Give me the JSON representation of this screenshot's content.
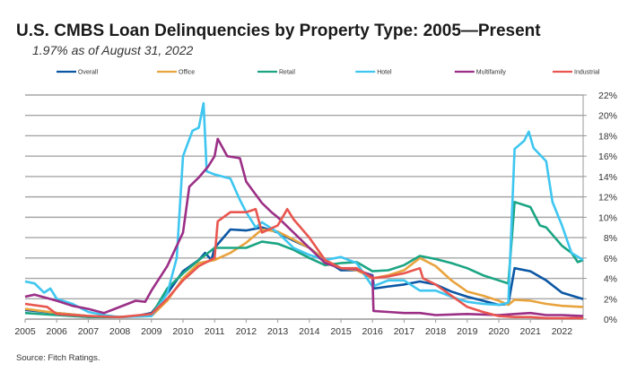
{
  "chart_data": {
    "type": "line",
    "title": "U.S. CMBS Loan Delinquencies by Property Type: 2005—Present",
    "subtitle": "1.97% as of August 31, 2022",
    "source": "Source: Fitch Ratings.",
    "xlabel": "",
    "ylabel": "",
    "xlim": [
      2005,
      2022.67
    ],
    "ylim": [
      0,
      22
    ],
    "x_ticks": [
      "2005",
      "2006",
      "2007",
      "2008",
      "2009",
      "2010",
      "2011",
      "2012",
      "2013",
      "2014",
      "2015",
      "2016",
      "2017",
      "2018",
      "2019",
      "2020",
      "2021",
      "2022"
    ],
    "y_ticks": [
      "0%",
      "2%",
      "4%",
      "6%",
      "8%",
      "10%",
      "12%",
      "14%",
      "16%",
      "18%",
      "20%",
      "22%"
    ],
    "y_axis_side": "right",
    "grid": "horizontal",
    "legend_position": "top",
    "series": [
      {
        "name": "Overall",
        "color": "#0b57a4",
        "points": [
          [
            2005,
            0.9
          ],
          [
            2006,
            0.6
          ],
          [
            2007,
            0.3
          ],
          [
            2008,
            0.2
          ],
          [
            2008.5,
            0.3
          ],
          [
            2009,
            0.6
          ],
          [
            2009.5,
            2.5
          ],
          [
            2010,
            4.7
          ],
          [
            2010.5,
            5.8
          ],
          [
            2010.7,
            6.5
          ],
          [
            2010.9,
            5.8
          ],
          [
            2011,
            7.0
          ],
          [
            2011.5,
            8.8
          ],
          [
            2012,
            8.7
          ],
          [
            2012.5,
            9.0
          ],
          [
            2013,
            8.5
          ],
          [
            2013.5,
            7.7
          ],
          [
            2014,
            7.0
          ],
          [
            2014.5,
            5.8
          ],
          [
            2015,
            4.8
          ],
          [
            2015.5,
            4.8
          ],
          [
            2016,
            4.3
          ],
          [
            2016.05,
            3.0
          ],
          [
            2016.5,
            3.2
          ],
          [
            2017,
            3.4
          ],
          [
            2017.5,
            3.7
          ],
          [
            2018,
            3.4
          ],
          [
            2018.5,
            2.7
          ],
          [
            2019,
            2.2
          ],
          [
            2019.5,
            1.8
          ],
          [
            2020,
            1.4
          ],
          [
            2020.3,
            1.5
          ],
          [
            2020.5,
            5.0
          ],
          [
            2021,
            4.7
          ],
          [
            2021.5,
            3.8
          ],
          [
            2022,
            2.6
          ],
          [
            2022.67,
            1.97
          ]
        ]
      },
      {
        "name": "Office",
        "color": "#e8a33d",
        "points": [
          [
            2005,
            1.0
          ],
          [
            2006,
            0.6
          ],
          [
            2007,
            0.3
          ],
          [
            2008,
            0.2
          ],
          [
            2009,
            0.3
          ],
          [
            2009.5,
            1.8
          ],
          [
            2010,
            4.0
          ],
          [
            2010.5,
            5.5
          ],
          [
            2011,
            5.8
          ],
          [
            2011.5,
            6.5
          ],
          [
            2012,
            7.5
          ],
          [
            2012.5,
            8.8
          ],
          [
            2013,
            8.6
          ],
          [
            2013.5,
            7.8
          ],
          [
            2014,
            7.0
          ],
          [
            2014.5,
            5.8
          ],
          [
            2015,
            5.0
          ],
          [
            2015.5,
            4.8
          ],
          [
            2016,
            4.0
          ],
          [
            2016.5,
            4.3
          ],
          [
            2017,
            4.8
          ],
          [
            2017.5,
            6.0
          ],
          [
            2018,
            5.2
          ],
          [
            2018.5,
            3.8
          ],
          [
            2019,
            2.7
          ],
          [
            2019.5,
            2.3
          ],
          [
            2020,
            1.8
          ],
          [
            2020.3,
            1.4
          ],
          [
            2020.5,
            1.9
          ],
          [
            2021,
            1.8
          ],
          [
            2021.5,
            1.5
          ],
          [
            2022,
            1.3
          ],
          [
            2022.67,
            1.2
          ]
        ]
      },
      {
        "name": "Retail",
        "color": "#1ba583",
        "points": [
          [
            2005,
            0.6
          ],
          [
            2006,
            0.4
          ],
          [
            2007,
            0.2
          ],
          [
            2008,
            0.2
          ],
          [
            2009,
            0.4
          ],
          [
            2009.5,
            3.0
          ],
          [
            2010,
            4.5
          ],
          [
            2010.5,
            5.8
          ],
          [
            2011,
            7.0
          ],
          [
            2011.5,
            7.0
          ],
          [
            2012,
            7.0
          ],
          [
            2012.5,
            7.6
          ],
          [
            2013,
            7.4
          ],
          [
            2013.5,
            6.8
          ],
          [
            2014,
            6.0
          ],
          [
            2014.5,
            5.3
          ],
          [
            2015,
            5.5
          ],
          [
            2015.5,
            5.6
          ],
          [
            2016,
            4.7
          ],
          [
            2016.5,
            4.8
          ],
          [
            2017,
            5.3
          ],
          [
            2017.5,
            6.2
          ],
          [
            2018,
            5.9
          ],
          [
            2018.5,
            5.5
          ],
          [
            2019,
            5.0
          ],
          [
            2019.5,
            4.3
          ],
          [
            2020,
            3.8
          ],
          [
            2020.3,
            3.5
          ],
          [
            2020.5,
            11.5
          ],
          [
            2021,
            11.0
          ],
          [
            2021.3,
            9.2
          ],
          [
            2021.5,
            9.0
          ],
          [
            2022,
            7.2
          ],
          [
            2022.3,
            6.5
          ],
          [
            2022.5,
            5.6
          ],
          [
            2022.67,
            5.8
          ]
        ]
      },
      {
        "name": "Hotel",
        "color": "#3ec6f0",
        "points": [
          [
            2005,
            3.7
          ],
          [
            2005.3,
            3.5
          ],
          [
            2005.6,
            2.6
          ],
          [
            2005.8,
            3.0
          ],
          [
            2006,
            2.0
          ],
          [
            2006.5,
            1.5
          ],
          [
            2007,
            0.7
          ],
          [
            2007.5,
            0.4
          ],
          [
            2008,
            0.2
          ],
          [
            2009,
            0.3
          ],
          [
            2009.5,
            2.5
          ],
          [
            2009.8,
            6.0
          ],
          [
            2010,
            16.0
          ],
          [
            2010.3,
            18.5
          ],
          [
            2010.5,
            18.8
          ],
          [
            2010.65,
            21.2
          ],
          [
            2010.75,
            14.5
          ],
          [
            2011,
            14.2
          ],
          [
            2011.5,
            13.8
          ],
          [
            2011.8,
            11.7
          ],
          [
            2012,
            10.5
          ],
          [
            2012.3,
            9.0
          ],
          [
            2012.5,
            9.5
          ],
          [
            2013,
            8.5
          ],
          [
            2013.5,
            7.0
          ],
          [
            2014,
            6.3
          ],
          [
            2014.5,
            5.8
          ],
          [
            2015,
            6.1
          ],
          [
            2015.5,
            5.5
          ],
          [
            2016,
            3.2
          ],
          [
            2016.5,
            3.8
          ],
          [
            2017,
            3.8
          ],
          [
            2017.5,
            2.8
          ],
          [
            2018,
            2.8
          ],
          [
            2018.5,
            2.2
          ],
          [
            2019,
            1.7
          ],
          [
            2019.5,
            1.5
          ],
          [
            2020,
            1.4
          ],
          [
            2020.3,
            1.6
          ],
          [
            2020.5,
            16.7
          ],
          [
            2020.8,
            17.5
          ],
          [
            2020.95,
            18.4
          ],
          [
            2021.1,
            16.8
          ],
          [
            2021.5,
            15.5
          ],
          [
            2021.7,
            11.5
          ],
          [
            2022,
            9.2
          ],
          [
            2022.3,
            6.5
          ],
          [
            2022.67,
            5.8
          ]
        ]
      },
      {
        "name": "Multifamily",
        "color": "#9b2f86",
        "points": [
          [
            2005,
            2.2
          ],
          [
            2005.3,
            2.4
          ],
          [
            2006,
            1.8
          ],
          [
            2006.5,
            1.3
          ],
          [
            2007,
            1.0
          ],
          [
            2007.5,
            0.6
          ],
          [
            2008,
            1.2
          ],
          [
            2008.5,
            1.8
          ],
          [
            2008.8,
            1.7
          ],
          [
            2009,
            2.8
          ],
          [
            2009.5,
            5.2
          ],
          [
            2010,
            8.5
          ],
          [
            2010.2,
            13.0
          ],
          [
            2010.5,
            13.9
          ],
          [
            2010.8,
            15.0
          ],
          [
            2011,
            16.0
          ],
          [
            2011.1,
            17.7
          ],
          [
            2011.4,
            16.0
          ],
          [
            2011.8,
            15.8
          ],
          [
            2012,
            13.5
          ],
          [
            2012.5,
            11.4
          ],
          [
            2012.8,
            10.5
          ],
          [
            2013,
            10.0
          ],
          [
            2013.5,
            8.5
          ],
          [
            2014,
            7.0
          ],
          [
            2014.5,
            5.5
          ],
          [
            2015,
            5.0
          ],
          [
            2015.5,
            4.9
          ],
          [
            2016,
            4.2
          ],
          [
            2016.03,
            0.8
          ],
          [
            2016.5,
            0.7
          ],
          [
            2017,
            0.6
          ],
          [
            2017.5,
            0.6
          ],
          [
            2018,
            0.4
          ],
          [
            2019,
            0.5
          ],
          [
            2020,
            0.4
          ],
          [
            2020.5,
            0.5
          ],
          [
            2021,
            0.6
          ],
          [
            2021.5,
            0.4
          ],
          [
            2022,
            0.4
          ],
          [
            2022.67,
            0.3
          ]
        ]
      },
      {
        "name": "Industrial",
        "color": "#e8564f",
        "points": [
          [
            2005,
            1.5
          ],
          [
            2005.7,
            1.2
          ],
          [
            2006,
            0.5
          ],
          [
            2007,
            0.3
          ],
          [
            2008,
            0.2
          ],
          [
            2009,
            0.5
          ],
          [
            2009.5,
            2.0
          ],
          [
            2010,
            3.8
          ],
          [
            2010.5,
            5.2
          ],
          [
            2011,
            6.0
          ],
          [
            2011.1,
            9.6
          ],
          [
            2011.5,
            10.5
          ],
          [
            2012,
            10.5
          ],
          [
            2012.3,
            10.8
          ],
          [
            2012.5,
            8.5
          ],
          [
            2013,
            9.2
          ],
          [
            2013.3,
            10.8
          ],
          [
            2013.5,
            9.8
          ],
          [
            2014,
            8.0
          ],
          [
            2014.5,
            5.8
          ],
          [
            2015,
            5.0
          ],
          [
            2015.5,
            5.0
          ],
          [
            2016,
            4.0
          ],
          [
            2016.5,
            4.2
          ],
          [
            2017,
            4.5
          ],
          [
            2017.5,
            5.0
          ],
          [
            2017.6,
            4.0
          ],
          [
            2018,
            3.4
          ],
          [
            2018.5,
            2.3
          ],
          [
            2019,
            1.2
          ],
          [
            2019.5,
            0.7
          ],
          [
            2020,
            0.3
          ],
          [
            2020.5,
            0.2
          ],
          [
            2021,
            0.2
          ],
          [
            2021.5,
            0.1
          ],
          [
            2022,
            0.1
          ],
          [
            2022.67,
            0.1
          ]
        ]
      }
    ]
  }
}
